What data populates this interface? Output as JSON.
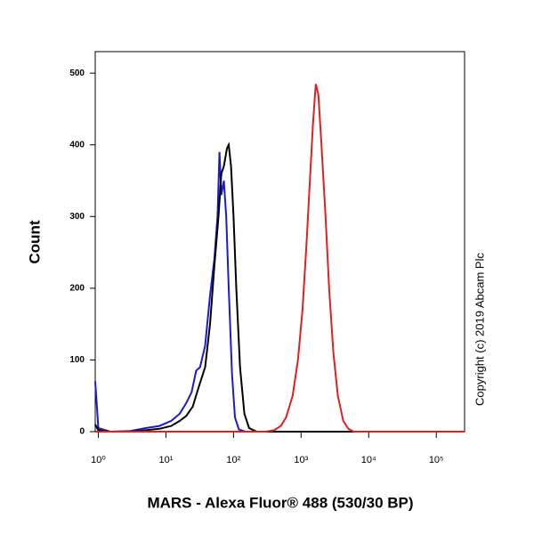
{
  "chart_data": {
    "type": "line",
    "x_label": "MARS - Alexa Fluor® 488 (530/30 BP)",
    "y_label": "Count",
    "annotation": "Copyright (c) 2019 Abcam Plc",
    "xscale": "log",
    "xlim": [
      0.9,
      262144
    ],
    "ylim": [
      0,
      530
    ],
    "xticks": [
      {
        "value": 1,
        "label": "10⁰"
      },
      {
        "value": 10,
        "label": "10¹"
      },
      {
        "value": 100,
        "label": "10²"
      },
      {
        "value": 1000,
        "label": "10³"
      },
      {
        "value": 10000,
        "label": "10⁴"
      },
      {
        "value": 100000,
        "label": "10⁵"
      }
    ],
    "yticks": [
      0,
      100,
      200,
      300,
      400,
      500
    ],
    "series": [
      {
        "color": "#1a1ad0",
        "x": [
          0.9,
          1,
          1.5,
          3,
          5,
          8,
          12,
          16,
          20,
          24,
          28,
          32,
          38,
          45,
          52,
          58,
          62,
          66,
          72,
          78,
          85,
          95,
          105,
          120,
          150,
          1000,
          262144
        ],
        "values": [
          70,
          5,
          0,
          1,
          5,
          8,
          15,
          25,
          40,
          55,
          85,
          90,
          120,
          190,
          240,
          300,
          390,
          330,
          350,
          300,
          200,
          80,
          20,
          3,
          0,
          0,
          0
        ]
      },
      {
        "color": "#000000",
        "x": [
          0.9,
          1,
          1.5,
          3,
          5,
          8,
          12,
          16,
          20,
          25,
          30,
          38,
          45,
          52,
          60,
          66,
          72,
          80,
          85,
          92,
          100,
          110,
          125,
          145,
          170,
          220,
          262144
        ],
        "values": [
          10,
          2,
          0,
          0,
          2,
          4,
          8,
          15,
          22,
          35,
          60,
          90,
          150,
          230,
          300,
          360,
          370,
          395,
          400,
          370,
          300,
          200,
          90,
          25,
          5,
          0,
          0
        ]
      },
      {
        "color": "#e02020",
        "x": [
          0.9,
          300,
          400,
          500,
          600,
          750,
          900,
          1050,
          1200,
          1350,
          1500,
          1650,
          1800,
          2000,
          2300,
          2600,
          3000,
          3500,
          4200,
          5000,
          6000,
          262144
        ],
        "values": [
          0,
          0,
          2,
          8,
          20,
          50,
          100,
          170,
          260,
          350,
          430,
          485,
          470,
          400,
          300,
          200,
          110,
          50,
          15,
          4,
          0,
          0
        ]
      }
    ]
  }
}
